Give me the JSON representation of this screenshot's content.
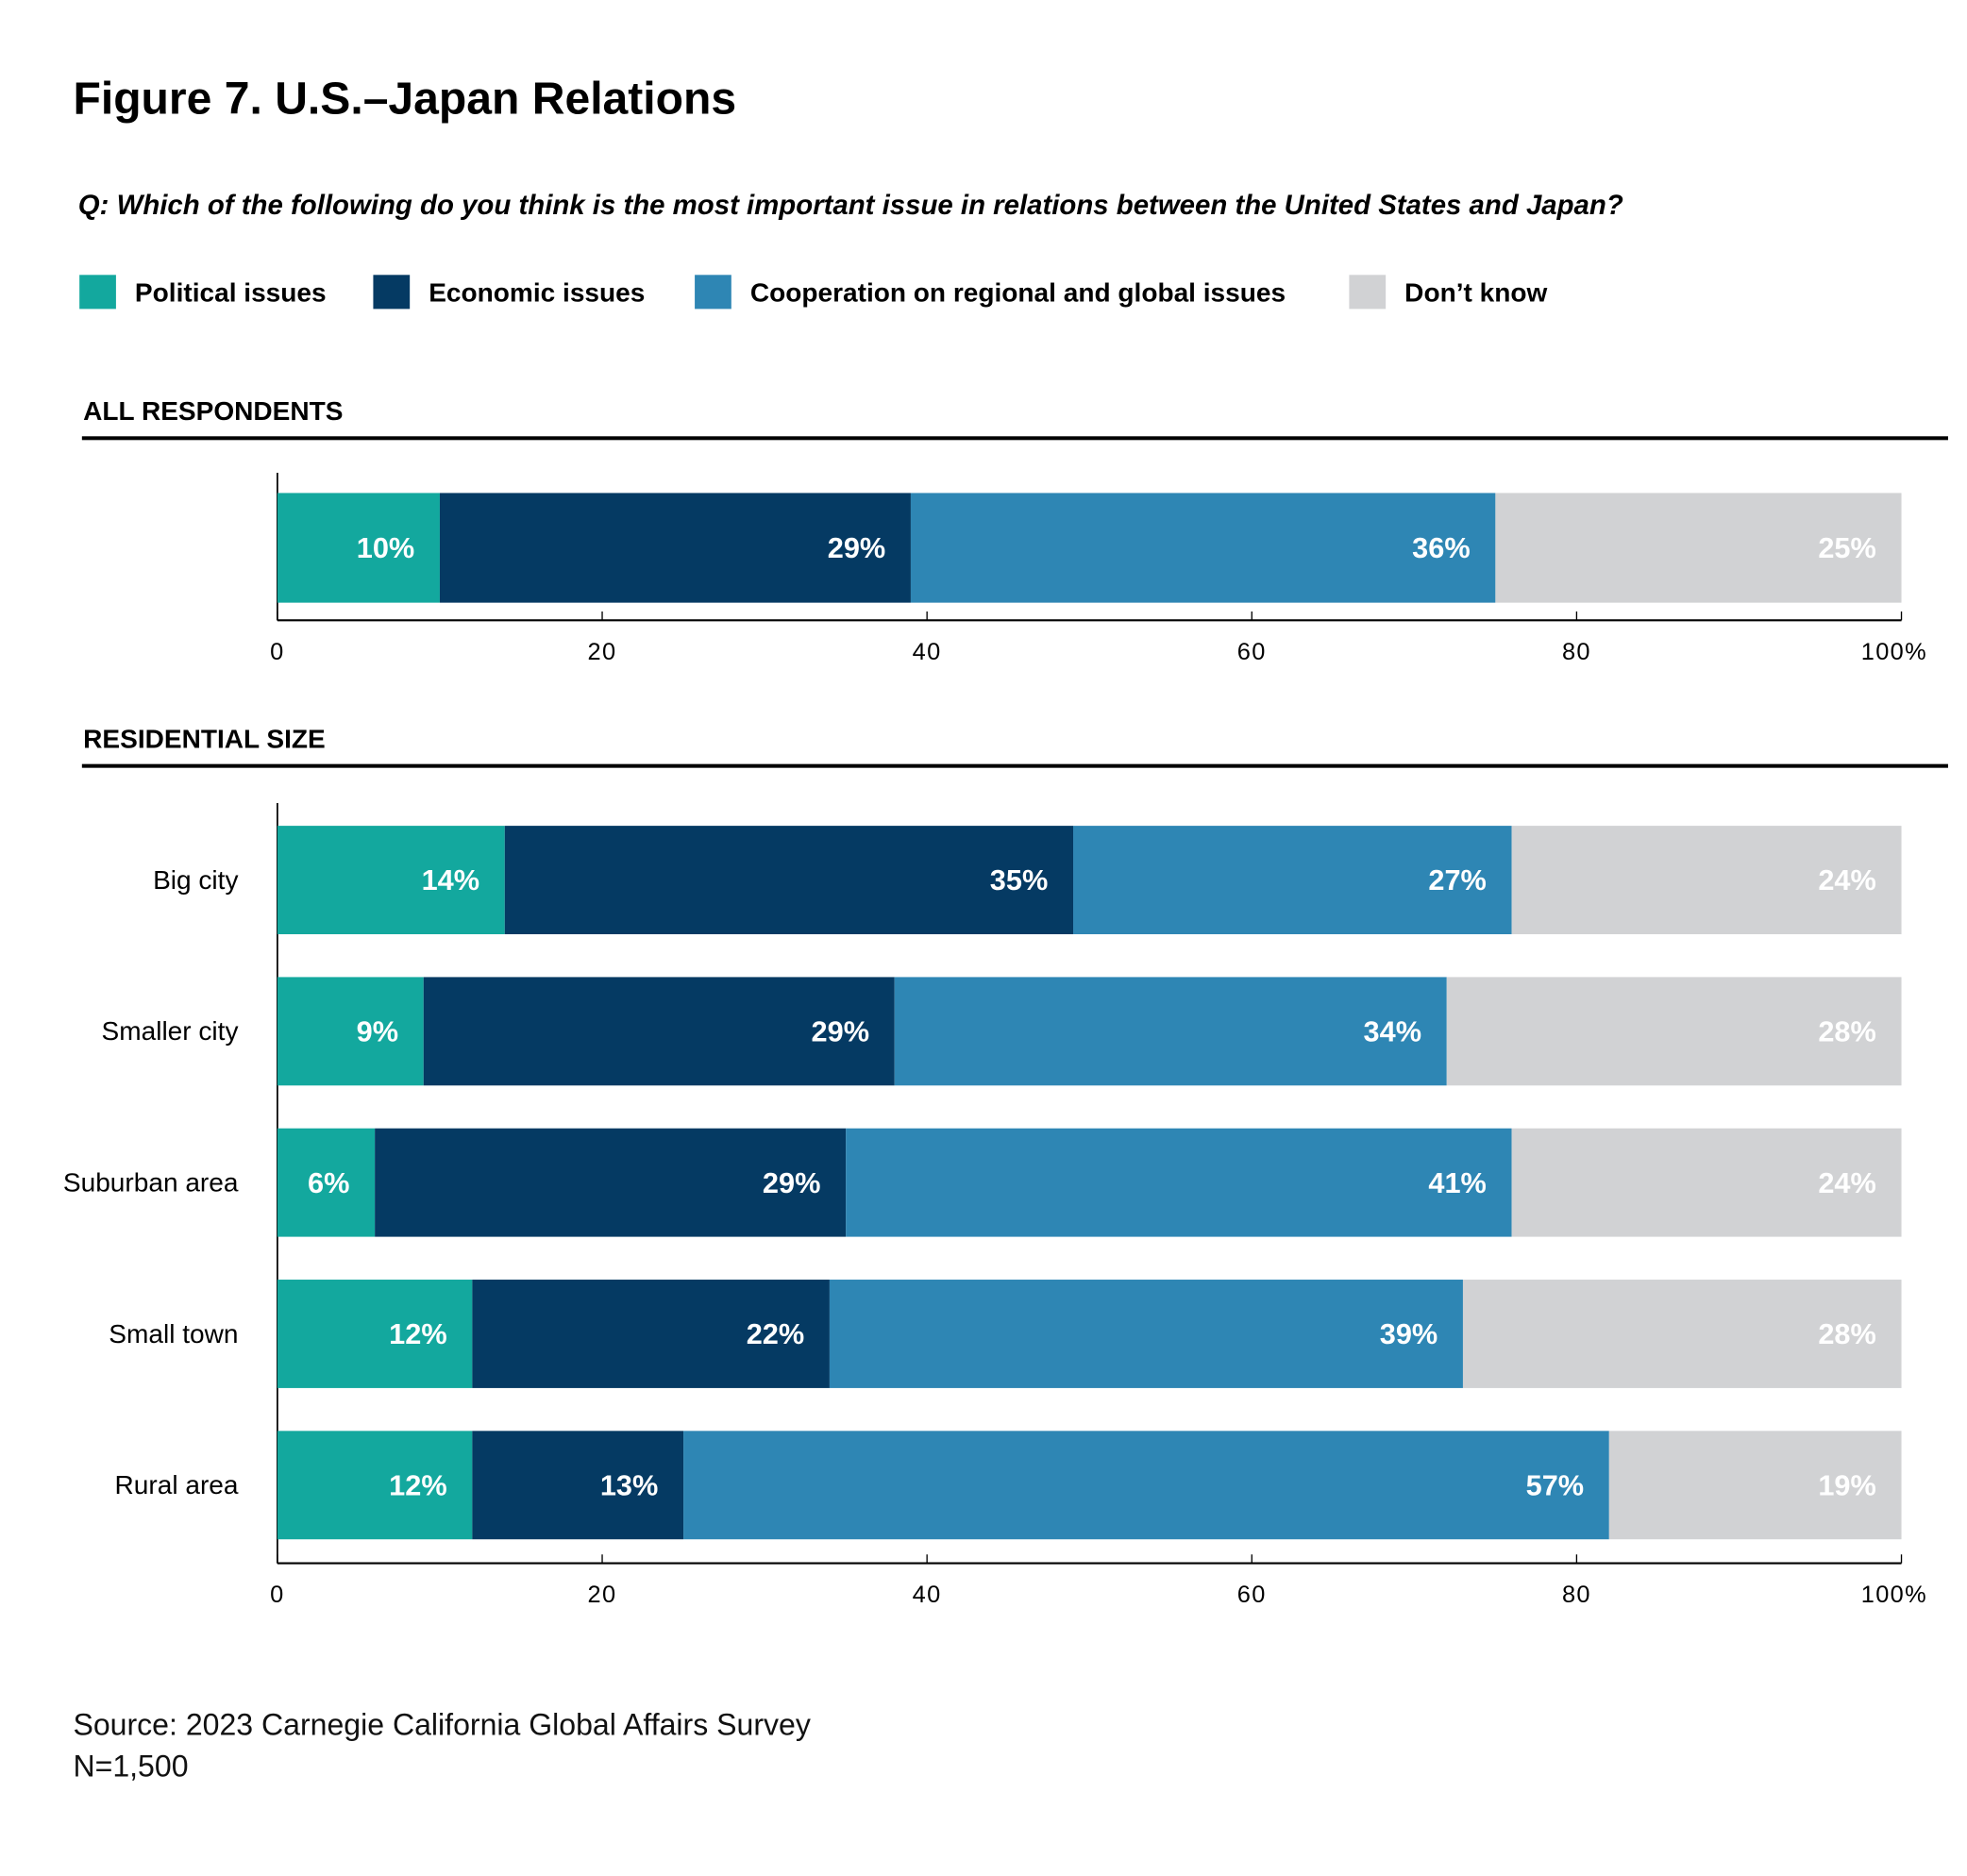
{
  "title": "Figure 7. U.S.–Japan Relations",
  "question": "Q: Which of the following do you think is the most important issue in relations between the United States and Japan?",
  "source": "Source: 2023 Carnegie California Global Affairs Survey",
  "sample": "N=1,500",
  "chart_data": [
    {
      "type": "bar",
      "orientation": "horizontal",
      "stacked": true,
      "title": "ALL RESPONDENTS",
      "categories": [
        ""
      ],
      "xlim": [
        0,
        100
      ],
      "xticks": [
        "0",
        "20",
        "40",
        "60",
        "80",
        "100%"
      ],
      "legend": "top-left",
      "series": [
        {
          "name": "Political issues",
          "color": "#13a89e",
          "values": [
            10
          ]
        },
        {
          "name": "Economic issues",
          "color": "#053a63",
          "values": [
            29
          ]
        },
        {
          "name": "Cooperation on regional and global issues",
          "color": "#2e86b4",
          "values": [
            36
          ]
        },
        {
          "name": "Don’t know",
          "color": "#d1d2d4",
          "values": [
            25
          ]
        }
      ]
    },
    {
      "type": "bar",
      "orientation": "horizontal",
      "stacked": true,
      "title": "RESIDENTIAL SIZE",
      "categories": [
        "Big city",
        "Smaller city",
        "Suburban area",
        "Small town",
        "Rural area"
      ],
      "xlim": [
        0,
        100
      ],
      "xticks": [
        "0",
        "20",
        "40",
        "60",
        "80",
        "100%"
      ],
      "series": [
        {
          "name": "Political issues",
          "color": "#13a89e",
          "values": [
            14,
            9,
            6,
            12,
            12
          ]
        },
        {
          "name": "Economic issues",
          "color": "#053a63",
          "values": [
            35,
            29,
            29,
            22,
            13
          ]
        },
        {
          "name": "Cooperation on regional and global issues",
          "color": "#2e86b4",
          "values": [
            27,
            34,
            41,
            39,
            57
          ]
        },
        {
          "name": "Don’t know",
          "color": "#d1d2d4",
          "values": [
            24,
            28,
            24,
            28,
            19
          ]
        }
      ]
    }
  ]
}
